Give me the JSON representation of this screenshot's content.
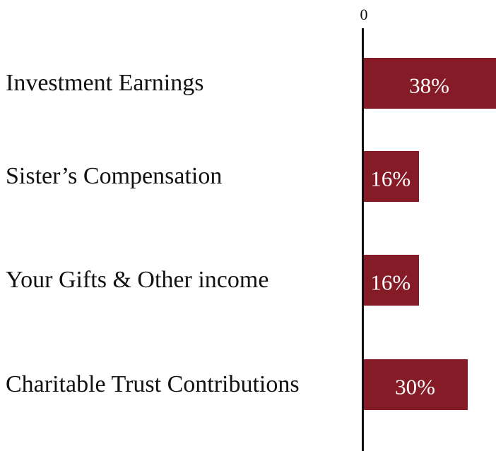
{
  "chart_data": {
    "type": "bar",
    "orientation": "horizontal",
    "categories": [
      "Investment Earnings",
      "Sister’s Compensation",
      "Your Gifts & Other income",
      "Charitable Trust Contributions"
    ],
    "values": [
      38,
      16,
      16,
      30
    ],
    "value_labels": [
      "38%",
      "16%",
      "16%",
      "30%"
    ],
    "color": "#841b26",
    "xlim": [
      0,
      38
    ],
    "xticks": [
      0
    ]
  }
}
